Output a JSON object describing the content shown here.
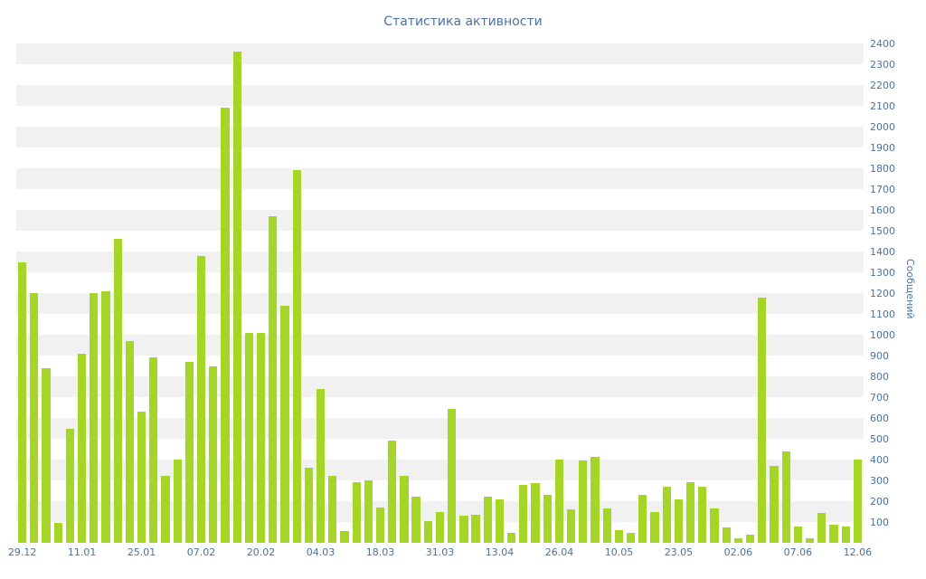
{
  "title": "Статистика активности",
  "chart_data": {
    "type": "bar",
    "title": "Статистика активности",
    "xlabel": "",
    "ylabel": "Сообщений",
    "ylim": [
      0,
      2400
    ],
    "ytick_step": 100,
    "yticks": [
      2400,
      2300,
      2200,
      2100,
      2000,
      1900,
      1800,
      1700,
      1600,
      1500,
      1400,
      1300,
      1200,
      1100,
      1000,
      900,
      800,
      700,
      600,
      500,
      400,
      300,
      200,
      100
    ],
    "grid": "striped-bands",
    "legend": "none",
    "bar_color": "#a5d627",
    "stripe_color": "#f1f1f1",
    "text_color": "#4a72a3",
    "values": [
      1350,
      1200,
      840,
      95,
      550,
      910,
      1200,
      1210,
      1460,
      970,
      630,
      890,
      320,
      400,
      870,
      1380,
      850,
      2090,
      2360,
      1010,
      1010,
      1570,
      1140,
      1790,
      360,
      740,
      320,
      55,
      290,
      300,
      170,
      490,
      320,
      220,
      105,
      150,
      645,
      130,
      135,
      220,
      210,
      50,
      280,
      285,
      230,
      400,
      160,
      395,
      415,
      165,
      60,
      50,
      230,
      150,
      270,
      210,
      290,
      270,
      165,
      75,
      20,
      40,
      1180,
      370,
      440,
      80,
      20,
      145,
      85,
      80,
      400
    ],
    "x_tick_labels": [
      {
        "index": 0,
        "label": "29.12"
      },
      {
        "index": 5,
        "label": "11.01"
      },
      {
        "index": 10,
        "label": "25.01"
      },
      {
        "index": 15,
        "label": "07.02"
      },
      {
        "index": 20,
        "label": "20.02"
      },
      {
        "index": 25,
        "label": "04.03"
      },
      {
        "index": 30,
        "label": "18.03"
      },
      {
        "index": 35,
        "label": "31.03"
      },
      {
        "index": 40,
        "label": "13.04"
      },
      {
        "index": 45,
        "label": "26.04"
      },
      {
        "index": 50,
        "label": "10.05"
      },
      {
        "index": 55,
        "label": "23.05"
      },
      {
        "index": 60,
        "label": "02.06"
      },
      {
        "index": 65,
        "label": "07.06"
      },
      {
        "index": 70,
        "label": "12.06"
      }
    ]
  }
}
